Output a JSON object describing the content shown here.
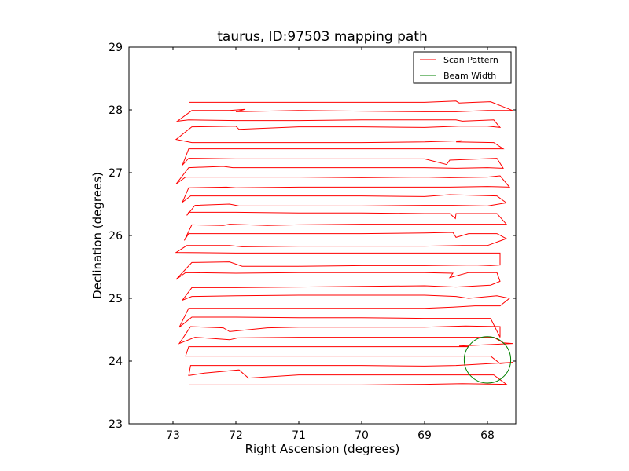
{
  "chart_data": {
    "type": "line",
    "title": "taurus, ID:97503 mapping path",
    "xlabel": "Right Ascension (degrees)",
    "ylabel": "Declination (degrees)",
    "xlim": [
      73.7,
      67.55
    ],
    "ylim": [
      23,
      29
    ],
    "x_reversed": true,
    "xticks": [
      73,
      72,
      71,
      70,
      69,
      68
    ],
    "yticks": [
      23,
      24,
      25,
      26,
      27,
      28,
      29
    ],
    "grid": false,
    "legend_position": "top-right",
    "series": [
      {
        "name": "Scan Pattern",
        "color": "#ff0000",
        "points": [
          [
            72.74,
            23.62
          ],
          [
            72.0,
            23.62
          ],
          [
            71.0,
            23.62
          ],
          [
            70.0,
            23.62
          ],
          [
            69.0,
            23.63
          ],
          [
            68.4,
            23.64
          ],
          [
            67.7,
            23.63
          ],
          [
            67.9,
            23.78
          ],
          [
            68.6,
            23.78
          ],
          [
            69.0,
            23.78
          ],
          [
            70.0,
            23.78
          ],
          [
            71.0,
            23.78
          ],
          [
            71.8,
            23.73
          ],
          [
            71.95,
            23.86
          ],
          [
            72.5,
            23.81
          ],
          [
            72.75,
            23.77
          ],
          [
            72.72,
            23.93
          ],
          [
            72.0,
            23.93
          ],
          [
            71.0,
            23.93
          ],
          [
            70.0,
            23.93
          ],
          [
            69.0,
            23.92
          ],
          [
            68.5,
            23.93
          ],
          [
            67.6,
            23.98
          ],
          [
            67.8,
            23.96
          ],
          [
            67.95,
            24.08
          ],
          [
            68.5,
            24.08
          ],
          [
            69.0,
            24.08
          ],
          [
            70.0,
            24.08
          ],
          [
            71.0,
            24.08
          ],
          [
            72.0,
            24.08
          ],
          [
            72.8,
            24.08
          ],
          [
            72.75,
            24.23
          ],
          [
            72.0,
            24.23
          ],
          [
            71.0,
            24.23
          ],
          [
            70.0,
            24.23
          ],
          [
            69.0,
            24.23
          ],
          [
            68.3,
            24.23
          ],
          [
            68.45,
            24.24
          ],
          [
            67.6,
            24.28
          ],
          [
            67.75,
            24.29
          ],
          [
            67.9,
            24.38
          ],
          [
            68.5,
            24.38
          ],
          [
            69.0,
            24.38
          ],
          [
            70.0,
            24.38
          ],
          [
            71.0,
            24.38
          ],
          [
            71.97,
            24.37
          ],
          [
            72.1,
            24.34
          ],
          [
            72.65,
            24.38
          ],
          [
            72.9,
            24.28
          ],
          [
            72.72,
            24.55
          ],
          [
            72.2,
            24.53
          ],
          [
            72.1,
            24.47
          ],
          [
            71.5,
            24.53
          ],
          [
            71.0,
            24.54
          ],
          [
            70.0,
            24.54
          ],
          [
            69.0,
            24.54
          ],
          [
            68.35,
            24.56
          ],
          [
            67.8,
            24.55
          ],
          [
            67.8,
            24.38
          ],
          [
            67.95,
            24.68
          ],
          [
            68.6,
            24.68
          ],
          [
            69.0,
            24.68
          ],
          [
            70.0,
            24.69
          ],
          [
            71.0,
            24.69
          ],
          [
            72.0,
            24.7
          ],
          [
            72.7,
            24.7
          ],
          [
            72.9,
            24.54
          ],
          [
            72.75,
            24.84
          ],
          [
            72.0,
            24.84
          ],
          [
            71.0,
            24.84
          ],
          [
            70.0,
            24.84
          ],
          [
            69.0,
            24.84
          ],
          [
            68.55,
            24.86
          ],
          [
            68.2,
            24.88
          ],
          [
            67.8,
            24.88
          ],
          [
            67.65,
            25.0
          ],
          [
            67.85,
            25.04
          ],
          [
            68.3,
            25.0
          ],
          [
            68.5,
            25.03
          ],
          [
            69.0,
            25.05
          ],
          [
            70.0,
            25.05
          ],
          [
            71.0,
            25.05
          ],
          [
            72.0,
            25.04
          ],
          [
            72.7,
            25.03
          ],
          [
            72.85,
            24.97
          ],
          [
            72.7,
            25.17
          ],
          [
            72.0,
            25.17
          ],
          [
            71.0,
            25.18
          ],
          [
            70.0,
            25.19
          ],
          [
            69.0,
            25.2
          ],
          [
            68.5,
            25.18
          ],
          [
            67.95,
            25.21
          ],
          [
            67.8,
            25.27
          ],
          [
            67.85,
            25.41
          ],
          [
            68.3,
            25.41
          ],
          [
            68.6,
            25.33
          ],
          [
            68.55,
            25.4
          ],
          [
            69.0,
            25.41
          ],
          [
            70.0,
            25.41
          ],
          [
            71.0,
            25.41
          ],
          [
            72.0,
            25.4
          ],
          [
            72.8,
            25.41
          ],
          [
            72.95,
            25.3
          ],
          [
            72.7,
            25.57
          ],
          [
            72.1,
            25.58
          ],
          [
            71.9,
            25.51
          ],
          [
            71.0,
            25.51
          ],
          [
            70.0,
            25.52
          ],
          [
            69.0,
            25.52
          ],
          [
            68.2,
            25.53
          ],
          [
            67.95,
            25.52
          ],
          [
            67.8,
            25.53
          ],
          [
            67.8,
            25.72
          ],
          [
            68.0,
            25.72
          ],
          [
            68.3,
            25.72
          ],
          [
            69.0,
            25.72
          ],
          [
            70.0,
            25.72
          ],
          [
            71.0,
            25.72
          ],
          [
            72.0,
            25.72
          ],
          [
            72.95,
            25.73
          ],
          [
            72.78,
            25.84
          ],
          [
            72.1,
            25.84
          ],
          [
            71.9,
            25.82
          ],
          [
            71.0,
            25.83
          ],
          [
            70.0,
            25.83
          ],
          [
            69.0,
            25.83
          ],
          [
            68.4,
            25.84
          ],
          [
            68.0,
            25.84
          ],
          [
            67.7,
            25.95
          ],
          [
            67.85,
            26.03
          ],
          [
            68.3,
            26.03
          ],
          [
            68.5,
            25.97
          ],
          [
            68.55,
            26.05
          ],
          [
            69.0,
            26.04
          ],
          [
            70.0,
            26.03
          ],
          [
            71.0,
            26.03
          ],
          [
            71.5,
            26.03
          ],
          [
            72.1,
            26.03
          ],
          [
            72.75,
            26.03
          ],
          [
            72.82,
            25.92
          ],
          [
            72.7,
            26.17
          ],
          [
            72.2,
            26.16
          ],
          [
            72.1,
            26.18
          ],
          [
            71.5,
            26.16
          ],
          [
            71.0,
            26.17
          ],
          [
            70.0,
            26.18
          ],
          [
            69.0,
            26.18
          ],
          [
            68.55,
            26.18
          ],
          [
            68.0,
            26.18
          ],
          [
            67.7,
            26.18
          ],
          [
            67.85,
            26.35
          ],
          [
            68.5,
            26.35
          ],
          [
            68.51,
            26.27
          ],
          [
            68.6,
            26.35
          ],
          [
            69.0,
            26.35
          ],
          [
            70.0,
            26.36
          ],
          [
            71.0,
            26.36
          ],
          [
            72.0,
            26.37
          ],
          [
            72.75,
            26.37
          ],
          [
            72.78,
            26.32
          ],
          [
            72.65,
            26.48
          ],
          [
            72.1,
            26.5
          ],
          [
            71.95,
            26.47
          ],
          [
            71.0,
            26.47
          ],
          [
            70.0,
            26.47
          ],
          [
            69.0,
            26.48
          ],
          [
            68.55,
            26.48
          ],
          [
            68.0,
            26.47
          ],
          [
            67.7,
            26.52
          ],
          [
            67.85,
            26.63
          ],
          [
            68.6,
            26.65
          ],
          [
            69.0,
            26.62
          ],
          [
            70.0,
            26.63
          ],
          [
            71.0,
            26.63
          ],
          [
            72.0,
            26.63
          ],
          [
            72.72,
            26.63
          ],
          [
            72.85,
            26.53
          ],
          [
            72.75,
            26.76
          ],
          [
            72.15,
            26.77
          ],
          [
            72.0,
            26.76
          ],
          [
            71.0,
            26.77
          ],
          [
            70.0,
            26.77
          ],
          [
            69.0,
            26.77
          ],
          [
            68.6,
            26.77
          ],
          [
            68.0,
            26.78
          ],
          [
            67.65,
            26.77
          ],
          [
            67.8,
            26.95
          ],
          [
            68.0,
            26.93
          ],
          [
            68.6,
            26.92
          ],
          [
            69.0,
            26.93
          ],
          [
            70.0,
            26.92
          ],
          [
            71.0,
            26.93
          ],
          [
            72.0,
            26.93
          ],
          [
            72.8,
            26.93
          ],
          [
            72.95,
            26.82
          ],
          [
            72.75,
            27.08
          ],
          [
            72.2,
            27.1
          ],
          [
            72.05,
            27.08
          ],
          [
            71.0,
            27.08
          ],
          [
            70.0,
            27.08
          ],
          [
            69.0,
            27.08
          ],
          [
            68.5,
            27.07
          ],
          [
            68.0,
            27.08
          ],
          [
            67.75,
            27.07
          ],
          [
            67.85,
            27.23
          ],
          [
            68.6,
            27.2
          ],
          [
            68.65,
            27.13
          ],
          [
            69.0,
            27.22
          ],
          [
            70.0,
            27.22
          ],
          [
            71.0,
            27.22
          ],
          [
            72.0,
            27.22
          ],
          [
            72.75,
            27.23
          ],
          [
            72.85,
            27.12
          ],
          [
            72.75,
            27.38
          ],
          [
            72.0,
            27.38
          ],
          [
            71.0,
            27.38
          ],
          [
            70.0,
            27.38
          ],
          [
            69.0,
            27.38
          ],
          [
            68.6,
            27.38
          ],
          [
            68.0,
            27.38
          ],
          [
            67.75,
            27.38
          ],
          [
            67.9,
            27.48
          ],
          [
            68.5,
            27.49
          ],
          [
            68.4,
            27.51
          ],
          [
            69.0,
            27.49
          ],
          [
            70.0,
            27.48
          ],
          [
            71.0,
            27.48
          ],
          [
            72.0,
            27.48
          ],
          [
            72.7,
            27.48
          ],
          [
            72.95,
            27.53
          ],
          [
            72.7,
            27.73
          ],
          [
            72.0,
            27.74
          ],
          [
            71.95,
            27.69
          ],
          [
            71.0,
            27.73
          ],
          [
            70.0,
            27.73
          ],
          [
            69.0,
            27.72
          ],
          [
            68.45,
            27.74
          ],
          [
            68.0,
            27.74
          ],
          [
            67.8,
            27.72
          ],
          [
            67.9,
            27.84
          ],
          [
            68.4,
            27.82
          ],
          [
            68.5,
            27.84
          ],
          [
            69.0,
            27.84
          ],
          [
            70.0,
            27.84
          ],
          [
            71.0,
            27.83
          ],
          [
            72.0,
            27.83
          ],
          [
            72.75,
            27.84
          ],
          [
            72.93,
            27.82
          ],
          [
            72.7,
            27.99
          ],
          [
            72.1,
            27.99
          ],
          [
            71.85,
            28.01
          ],
          [
            72.0,
            27.97
          ],
          [
            71.0,
            27.99
          ],
          [
            70.0,
            27.98
          ],
          [
            69.0,
            27.97
          ],
          [
            68.5,
            27.97
          ],
          [
            68.0,
            27.99
          ],
          [
            67.6,
            27.99
          ],
          [
            67.95,
            28.13
          ],
          [
            68.2,
            28.12
          ],
          [
            68.45,
            28.11
          ],
          [
            68.5,
            28.14
          ],
          [
            69.0,
            28.12
          ],
          [
            70.0,
            28.12
          ],
          [
            71.0,
            28.12
          ],
          [
            72.0,
            28.12
          ],
          [
            72.74,
            28.12
          ]
        ]
      },
      {
        "name": "Beam Width",
        "color": "#008000",
        "type": "circle",
        "center": [
          68.0,
          24.02
        ],
        "radius_deg": 0.37
      }
    ]
  }
}
